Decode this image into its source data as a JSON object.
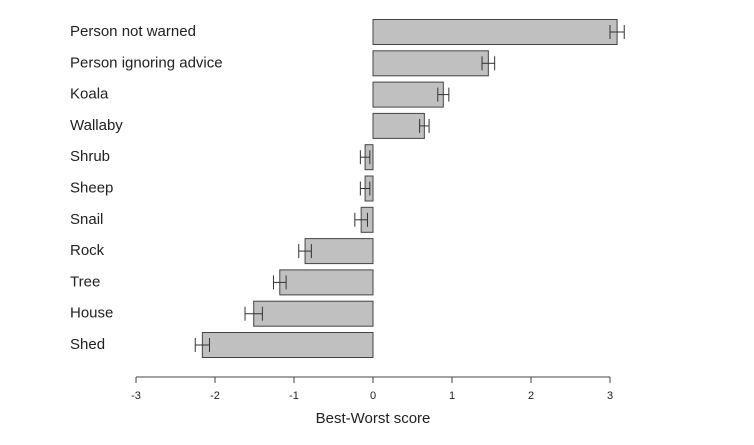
{
  "chart_data": {
    "type": "hbar_error",
    "x_label": "Best-Worst score",
    "categories": [
      "Person not warned",
      "Person ignoring advice",
      "Koala",
      "Wallaby",
      "Shrub",
      "Sheep",
      "Snail",
      "Rock",
      "Tree",
      "House",
      "Shed"
    ],
    "values": [
      3.09,
      1.46,
      0.89,
      0.65,
      -0.1,
      -0.1,
      -0.15,
      -0.86,
      -1.18,
      -1.51,
      -2.16
    ],
    "errors": [
      0.09,
      0.08,
      0.07,
      0.06,
      0.06,
      0.06,
      0.08,
      0.08,
      0.08,
      0.11,
      0.09
    ],
    "color": "#c0c0c0",
    "xlim": [
      -3,
      3
    ],
    "xticks": [
      -3,
      -2,
      -1,
      0,
      1,
      2,
      3
    ]
  }
}
